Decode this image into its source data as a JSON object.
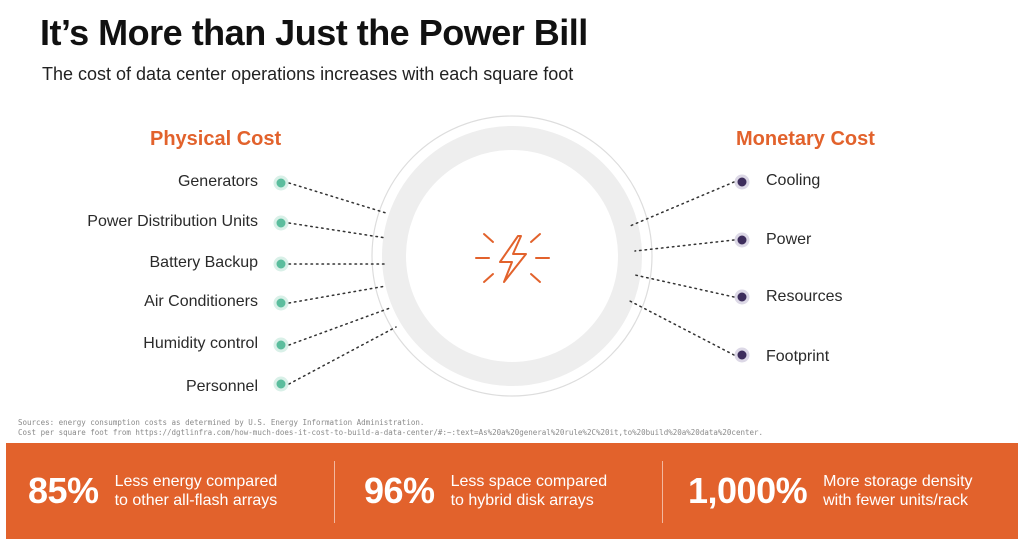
{
  "title": "It’s More than Just the Power Bill",
  "subtitle": "The cost of data center operations increases with each square foot",
  "physical": {
    "heading": "Physical Cost",
    "items": [
      "Generators",
      "Power Distribution Units",
      "Battery Backup",
      "Air Conditioners",
      "Humidity control",
      "Personnel"
    ]
  },
  "monetary": {
    "heading": "Monetary Cost",
    "items": [
      "Cooling",
      "Power",
      "Resources",
      "Footprint"
    ]
  },
  "icon": "lightning-bolt-icon",
  "colors": {
    "accent": "#e2622c",
    "physical_dot": "#5bbd9d",
    "monetary_dot": "#3d2d5c",
    "ring": "#eeeeee"
  },
  "sources": {
    "line1": "Sources: energy consumption costs as determined by U.S. Energy Information Administration.",
    "line2": "Cost per square foot from https://dgtlinfra.com/how-much-does-it-cost-to-build-a-data-center/#:~:text=As%20a%20general%20rule%2C%20it,to%20build%20a%20data%20center."
  },
  "stats": [
    {
      "value": "85%",
      "line1": "Less energy compared",
      "line2": "to other all-flash arrays"
    },
    {
      "value": "96%",
      "line1": "Less space compared",
      "line2": "to hybrid disk arrays"
    },
    {
      "value": "1,000%",
      "line1": "More storage density",
      "line2": "with fewer units/rack"
    }
  ]
}
